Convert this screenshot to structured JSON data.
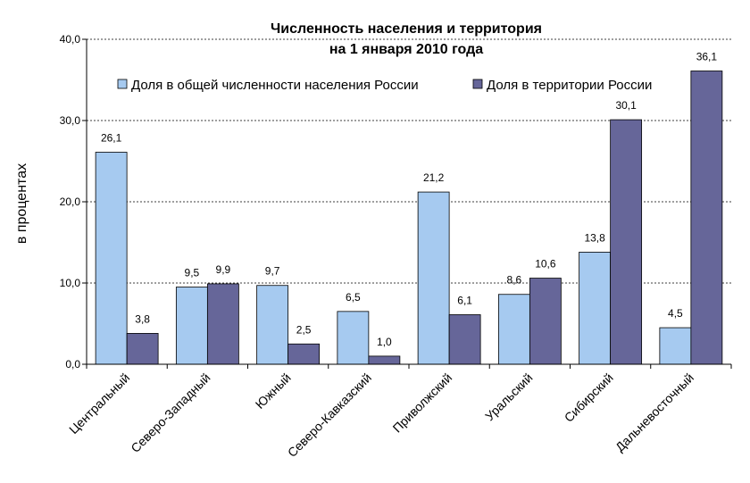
{
  "chart_data": {
    "type": "bar",
    "title_line1": "Численность населения и территория",
    "title_line2": "на 1 января 2010 года",
    "ylabel": "в процентах",
    "xlabel": "",
    "ylim": [
      0,
      40
    ],
    "yticks": [
      "0,0",
      "10,0",
      "20,0",
      "30,0",
      "40,0"
    ],
    "grid": true,
    "legend_position": "top",
    "categories": [
      "Центральный",
      "Северо-Западный",
      "Южный",
      "Северо-Кавказский",
      "Приволжский",
      "Уральский",
      "Сибирский",
      "Дальневосточный"
    ],
    "series": [
      {
        "name": "Доля в общей численности населения России",
        "color": "#a6caf0",
        "values": [
          26.1,
          9.5,
          9.7,
          6.5,
          21.2,
          8.6,
          13.8,
          4.5
        ],
        "labels": [
          "26,1",
          "9,5",
          "9,7",
          "6,5",
          "21,2",
          "8,6",
          "13,8",
          "4,5"
        ]
      },
      {
        "name": "Доля в территории России",
        "color": "#666699",
        "values": [
          3.8,
          9.9,
          2.5,
          1.0,
          6.1,
          10.6,
          30.1,
          36.1
        ],
        "labels": [
          "3,8",
          "9,9",
          "2,5",
          "1,0",
          "6,1",
          "10,6",
          "30,1",
          "36,1"
        ]
      }
    ]
  }
}
